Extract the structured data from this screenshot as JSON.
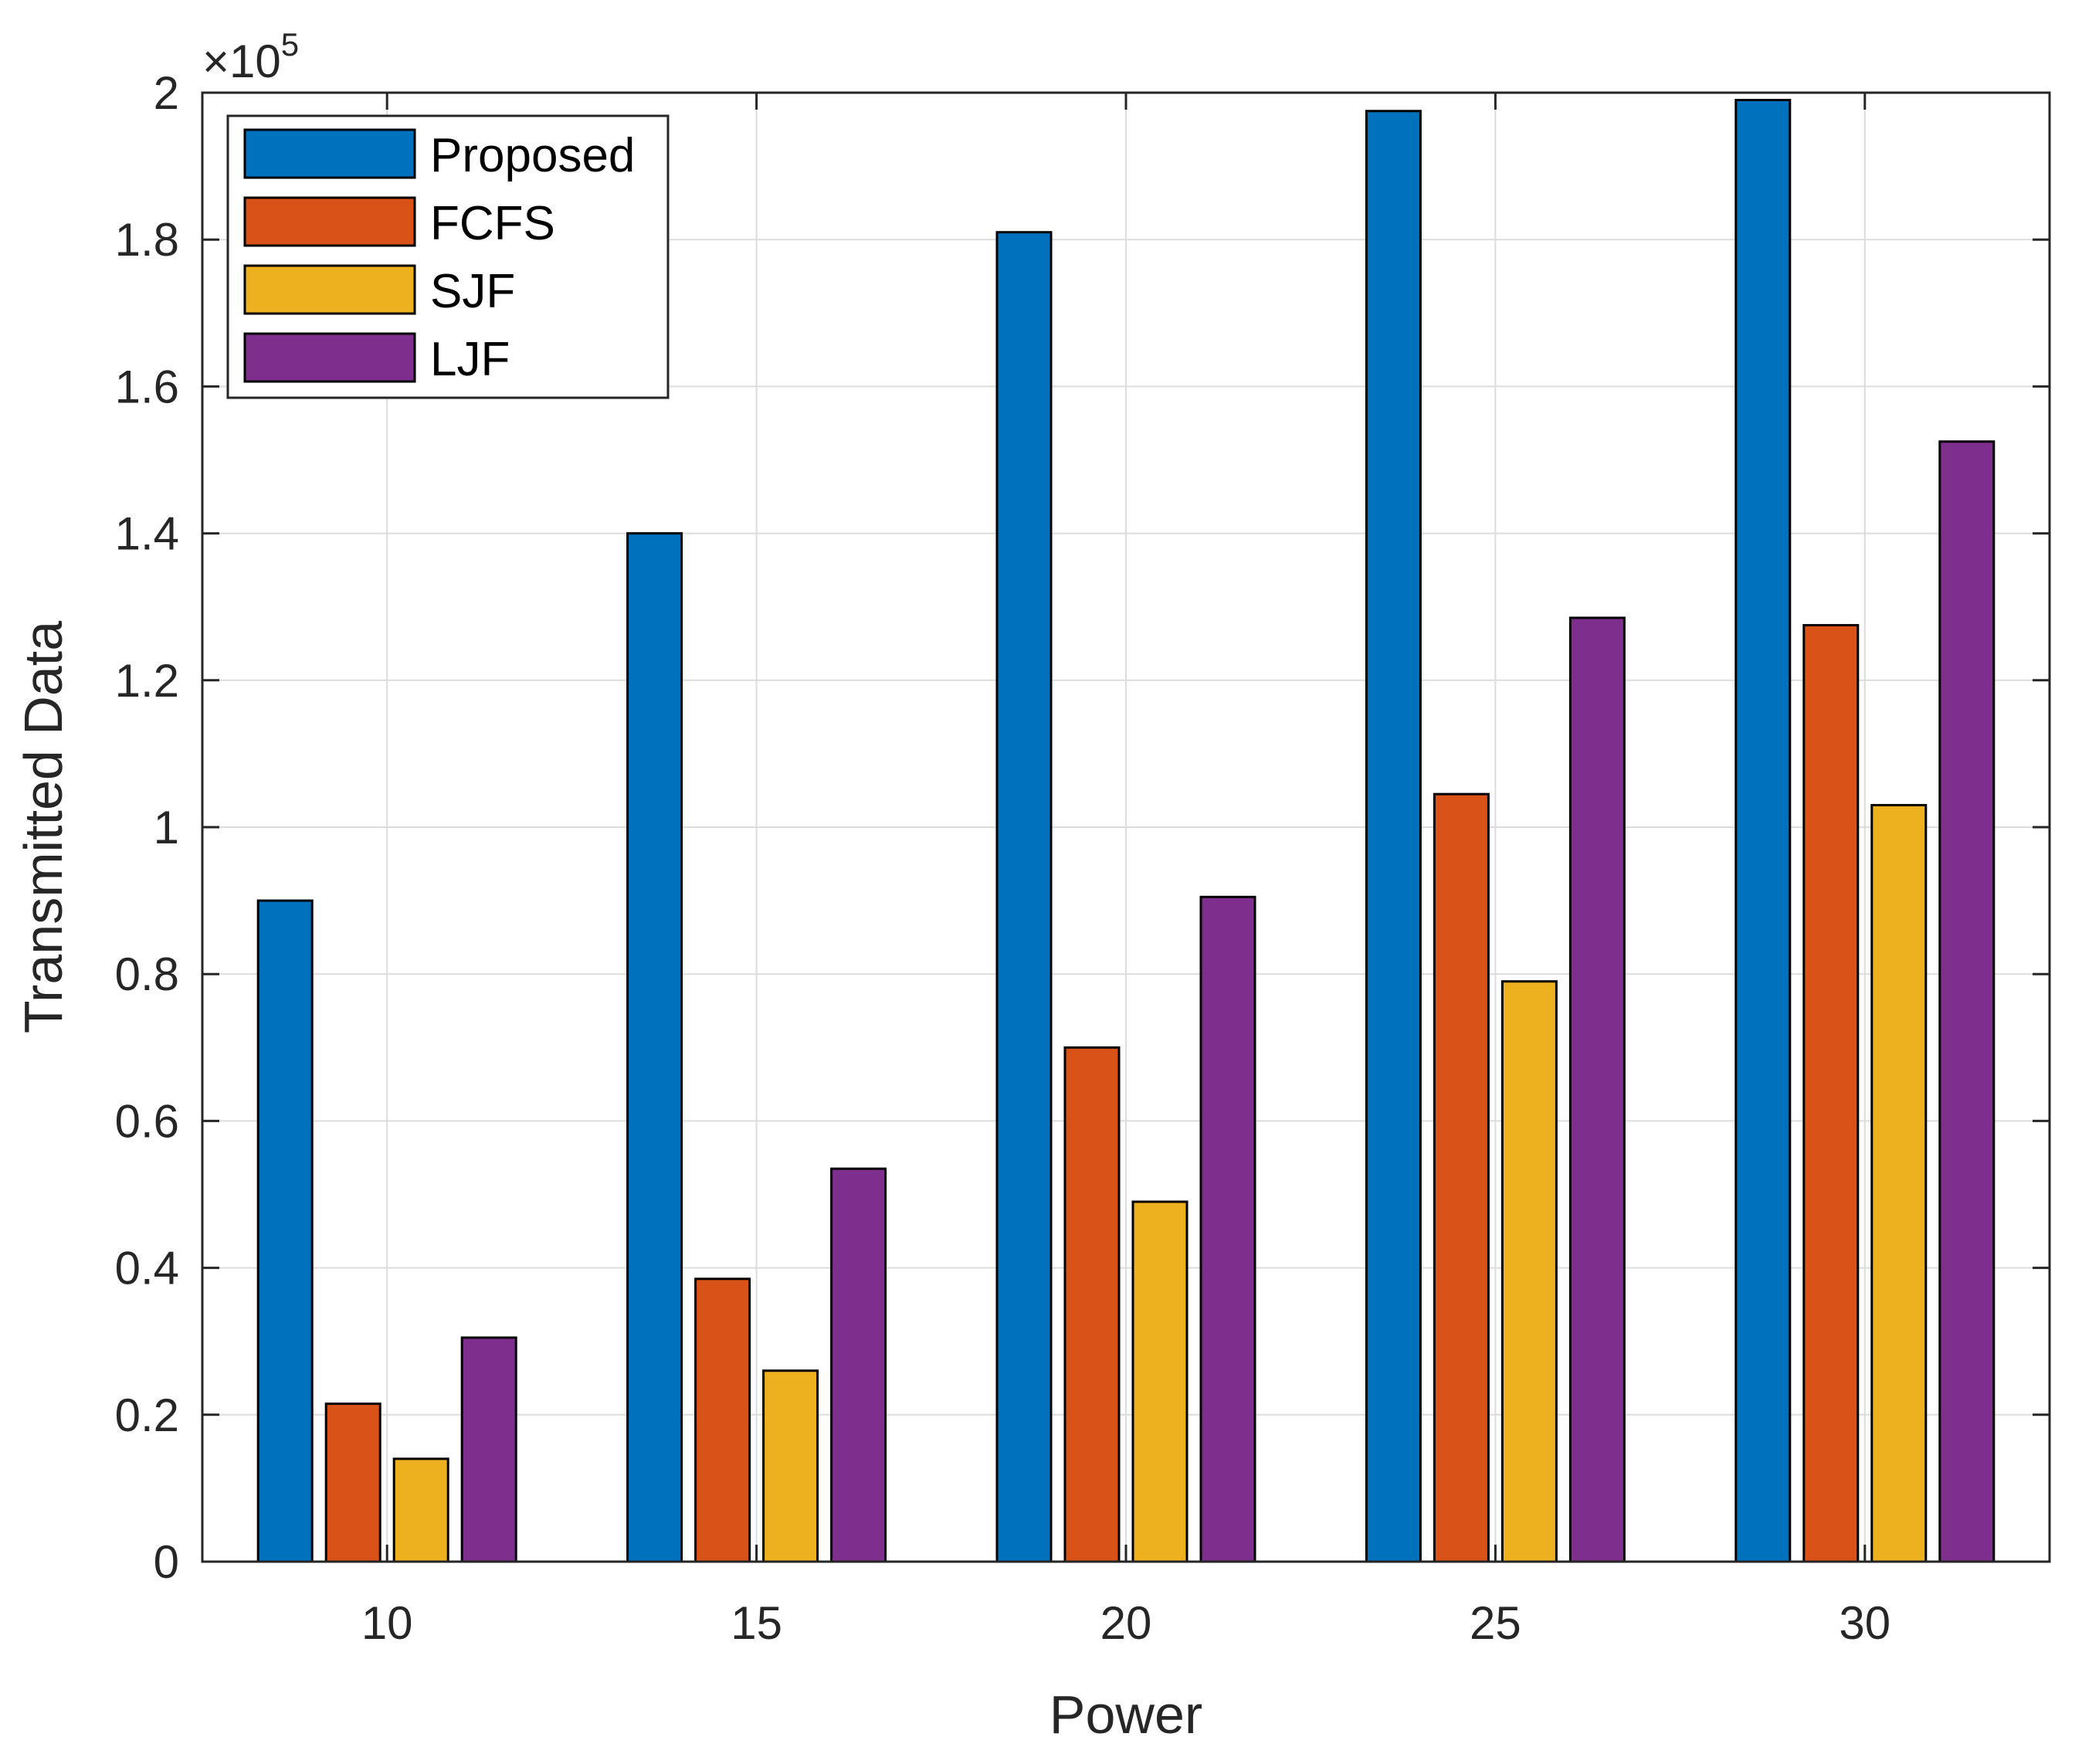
{
  "chart_data": {
    "type": "bar",
    "title": "",
    "xlabel": "Power",
    "ylabel": "Transmitted Data",
    "categories": [
      "10",
      "15",
      "20",
      "25",
      "30"
    ],
    "series": [
      {
        "name": "Proposed",
        "color": "#0072BD",
        "values": [
          90000,
          140000,
          181000,
          197500,
          199000
        ]
      },
      {
        "name": "FCFS",
        "color": "#D95319",
        "values": [
          21500,
          38500,
          70000,
          104500,
          127500
        ]
      },
      {
        "name": "SJF",
        "color": "#EDB120",
        "values": [
          14000,
          26000,
          49000,
          79000,
          103000
        ]
      },
      {
        "name": "LJF",
        "color": "#7E2F8E",
        "values": [
          30500,
          53500,
          90500,
          128500,
          152500
        ]
      }
    ],
    "ylim": [
      0,
      200000
    ],
    "yticks": [
      0,
      20000,
      40000,
      60000,
      80000,
      100000,
      120000,
      140000,
      160000,
      180000,
      200000
    ],
    "ytick_labels": [
      "0",
      "0.2",
      "0.4",
      "0.6",
      "0.8",
      "1",
      "1.2",
      "1.4",
      "1.6",
      "1.8",
      "2"
    ],
    "y_exponent_prefix": "×10",
    "y_exponent_power": "5",
    "grid": true,
    "legend_position": "top-left"
  }
}
